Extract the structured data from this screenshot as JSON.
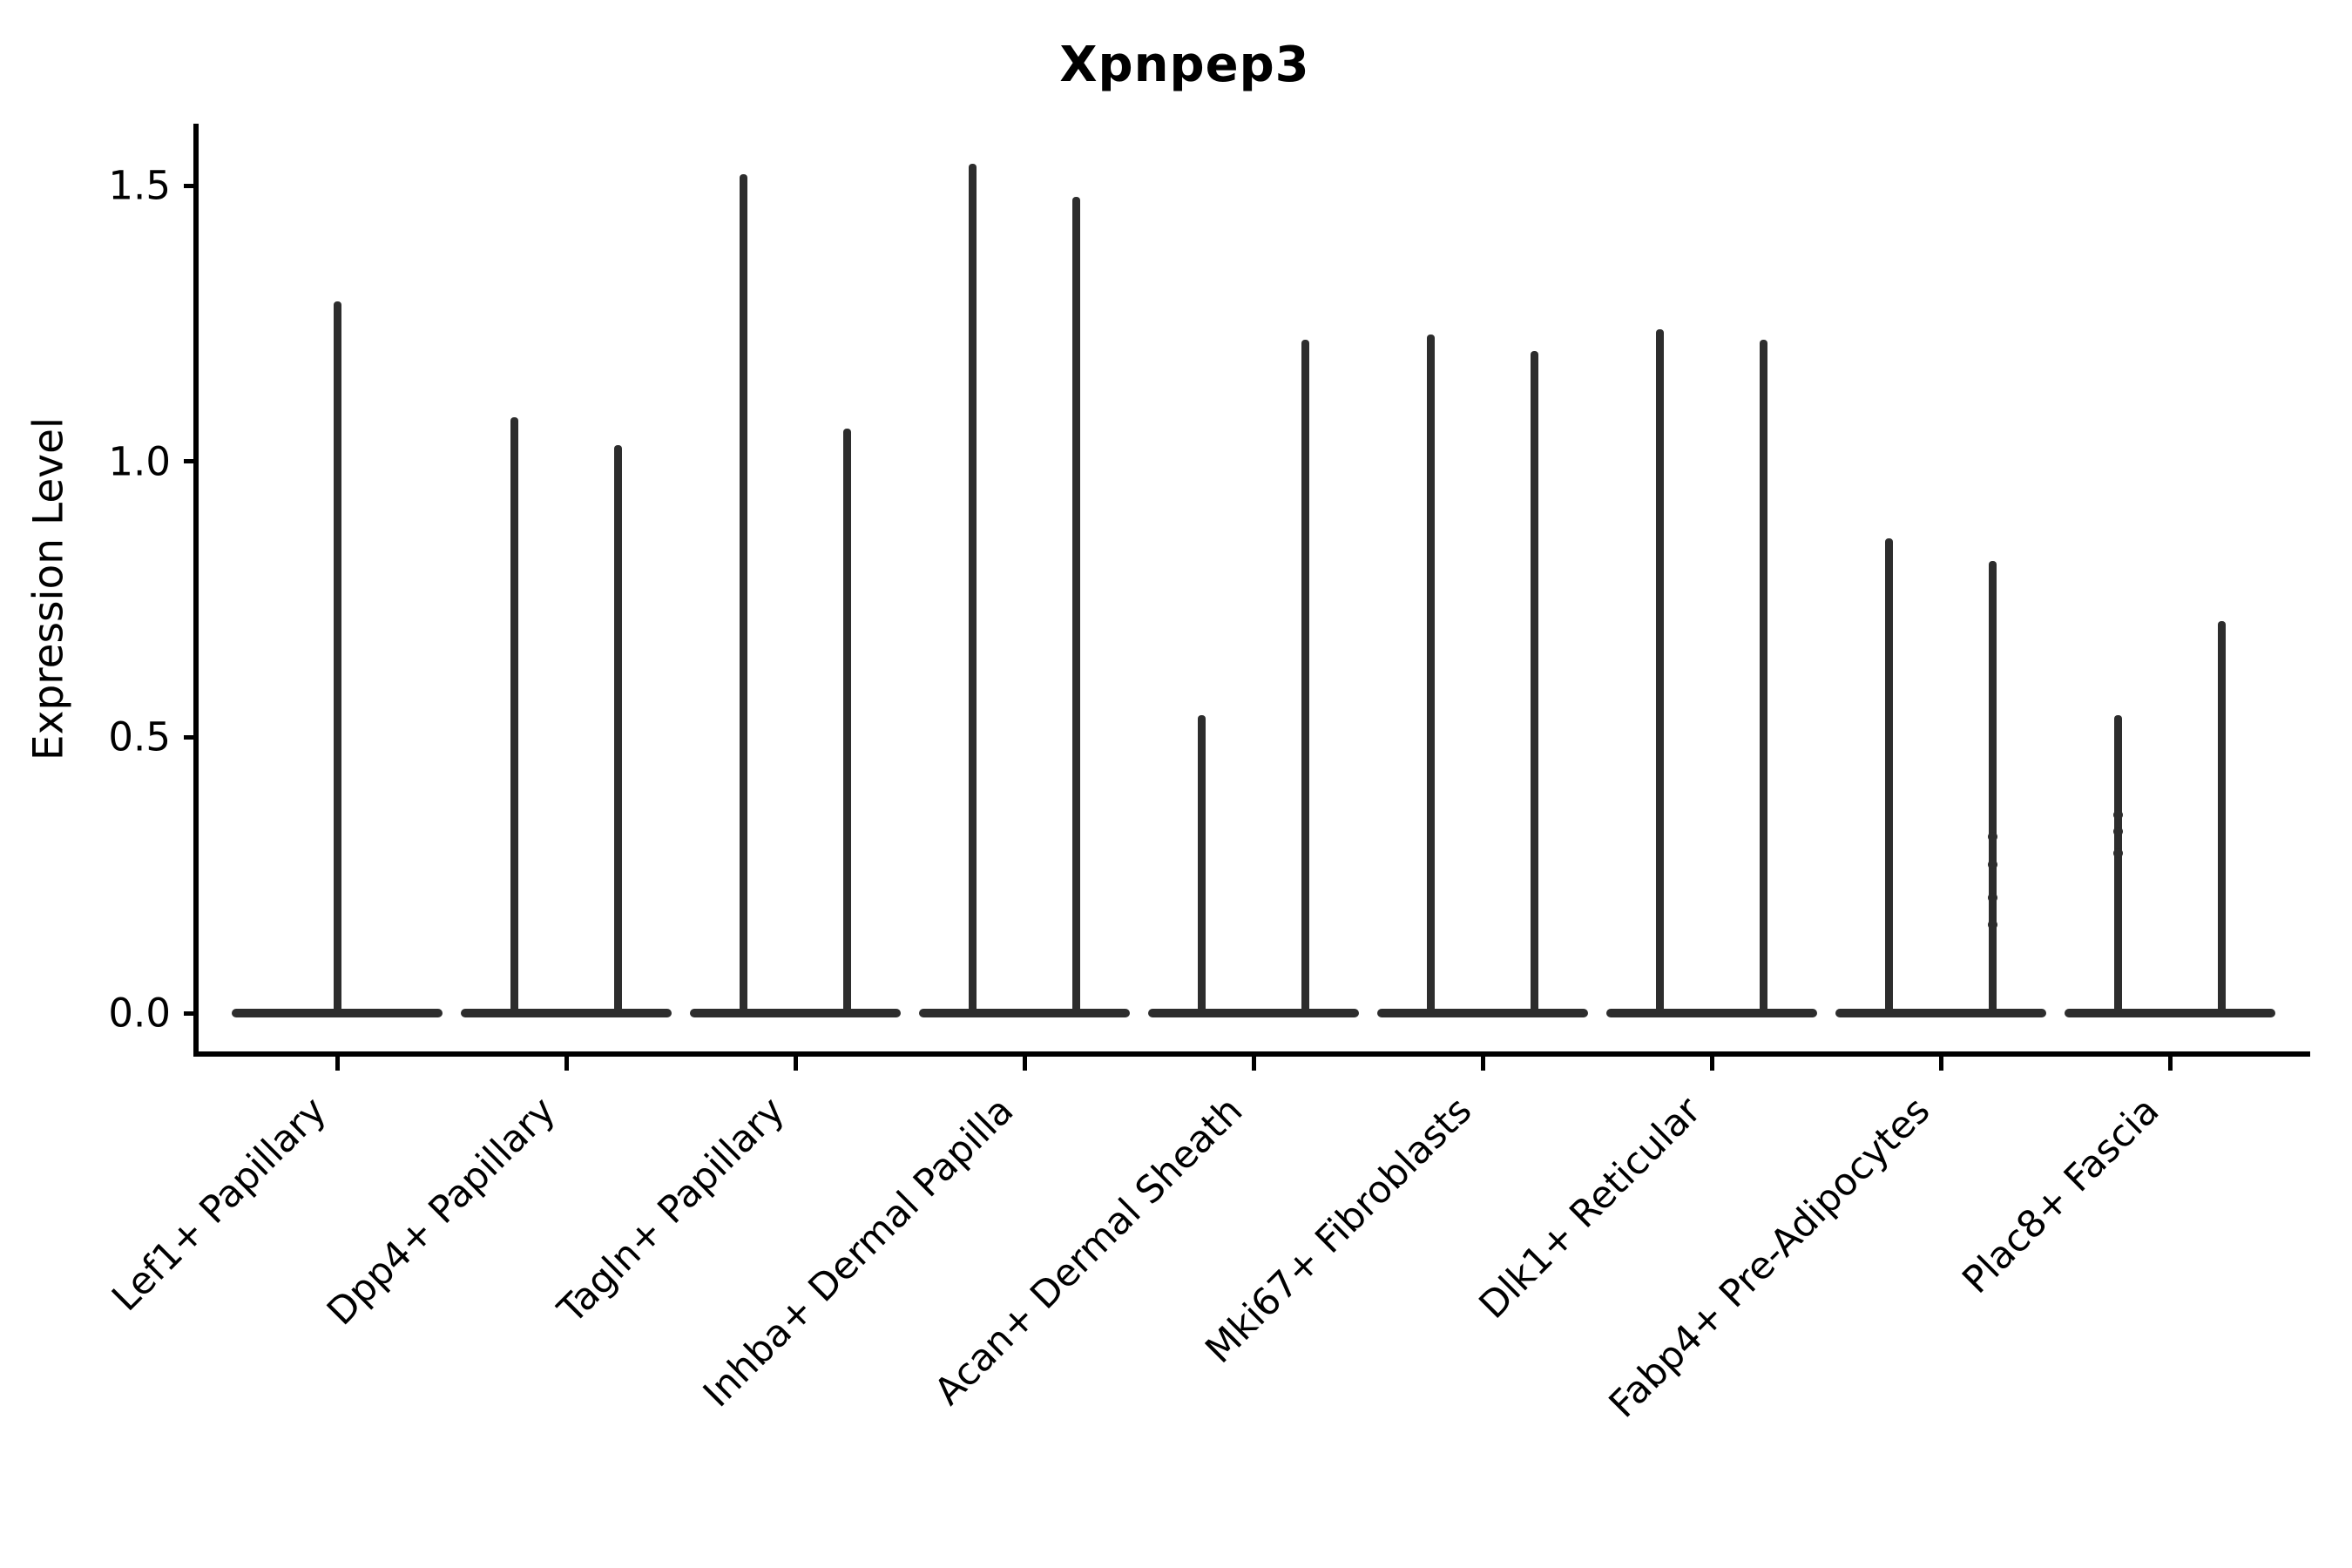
{
  "title": "Xpnpep3",
  "axes": {
    "ylabel": "Expression Level"
  },
  "colors": {
    "violin": "#2d2d2d",
    "axis": "#000000",
    "text": "#000000",
    "background": "#ffffff"
  },
  "chart_data": {
    "type": "violin",
    "title": "Xpnpep3",
    "xlabel": "",
    "ylabel": "Expression Level",
    "ylim": [
      0,
      1.6
    ],
    "yticks": [
      0.0,
      0.5,
      1.0,
      1.5
    ],
    "ytick_labels": [
      "0.0",
      "0.5",
      "1.0",
      "1.5"
    ],
    "grid": false,
    "legend": "none",
    "categories": [
      "Lef1+ Papillary",
      "Dpp4+ Papillary",
      "Tagln+ Papillary",
      "Inhba+ Dermal Papilla",
      "Acan+ Dermal Sheath",
      "Mki67+ Fibroblasts",
      "Dlk1+ Reticular",
      "Fabp4+ Pre-Adipocytes",
      "Plac8+ Fascia"
    ],
    "description": "Violin plot of Xpnpep3 expression per fibroblast cluster; nearly all density is a wide flat base at expression 0 with a thin tail (spike) reaching each violin's maximum. Categories 2-9 each contain two side-by-side violins; category 1 has a single centered violin.",
    "violins": [
      {
        "category": "Lef1+ Papillary",
        "spike_max": [
          1.29
        ]
      },
      {
        "category": "Dpp4+ Papillary",
        "spike_max": [
          1.08,
          1.03
        ]
      },
      {
        "category": "Tagln+ Papillary",
        "spike_max": [
          1.52,
          1.06
        ]
      },
      {
        "category": "Inhba+ Dermal Papilla",
        "spike_max": [
          1.54,
          1.48
        ]
      },
      {
        "category": "Acan+ Dermal Sheath",
        "spike_max": [
          0.54,
          1.22
        ]
      },
      {
        "category": "Mki67+ Fibroblasts",
        "spike_max": [
          1.23,
          1.2
        ]
      },
      {
        "category": "Dlk1+ Reticular",
        "spike_max": [
          1.24,
          1.22
        ]
      },
      {
        "category": "Fabp4+ Pre-Adipocytes",
        "spike_max": [
          0.86,
          0.82
        ]
      },
      {
        "category": "Plac8+ Fascia",
        "spike_max": [
          0.54,
          0.71
        ]
      }
    ],
    "scatter_points": [
      {
        "category_index": 7,
        "spike_index": 1,
        "values": [
          0.32,
          0.27,
          0.21,
          0.16
        ]
      },
      {
        "category_index": 8,
        "spike_index": 0,
        "values": [
          0.36,
          0.33,
          0.29
        ]
      }
    ]
  }
}
